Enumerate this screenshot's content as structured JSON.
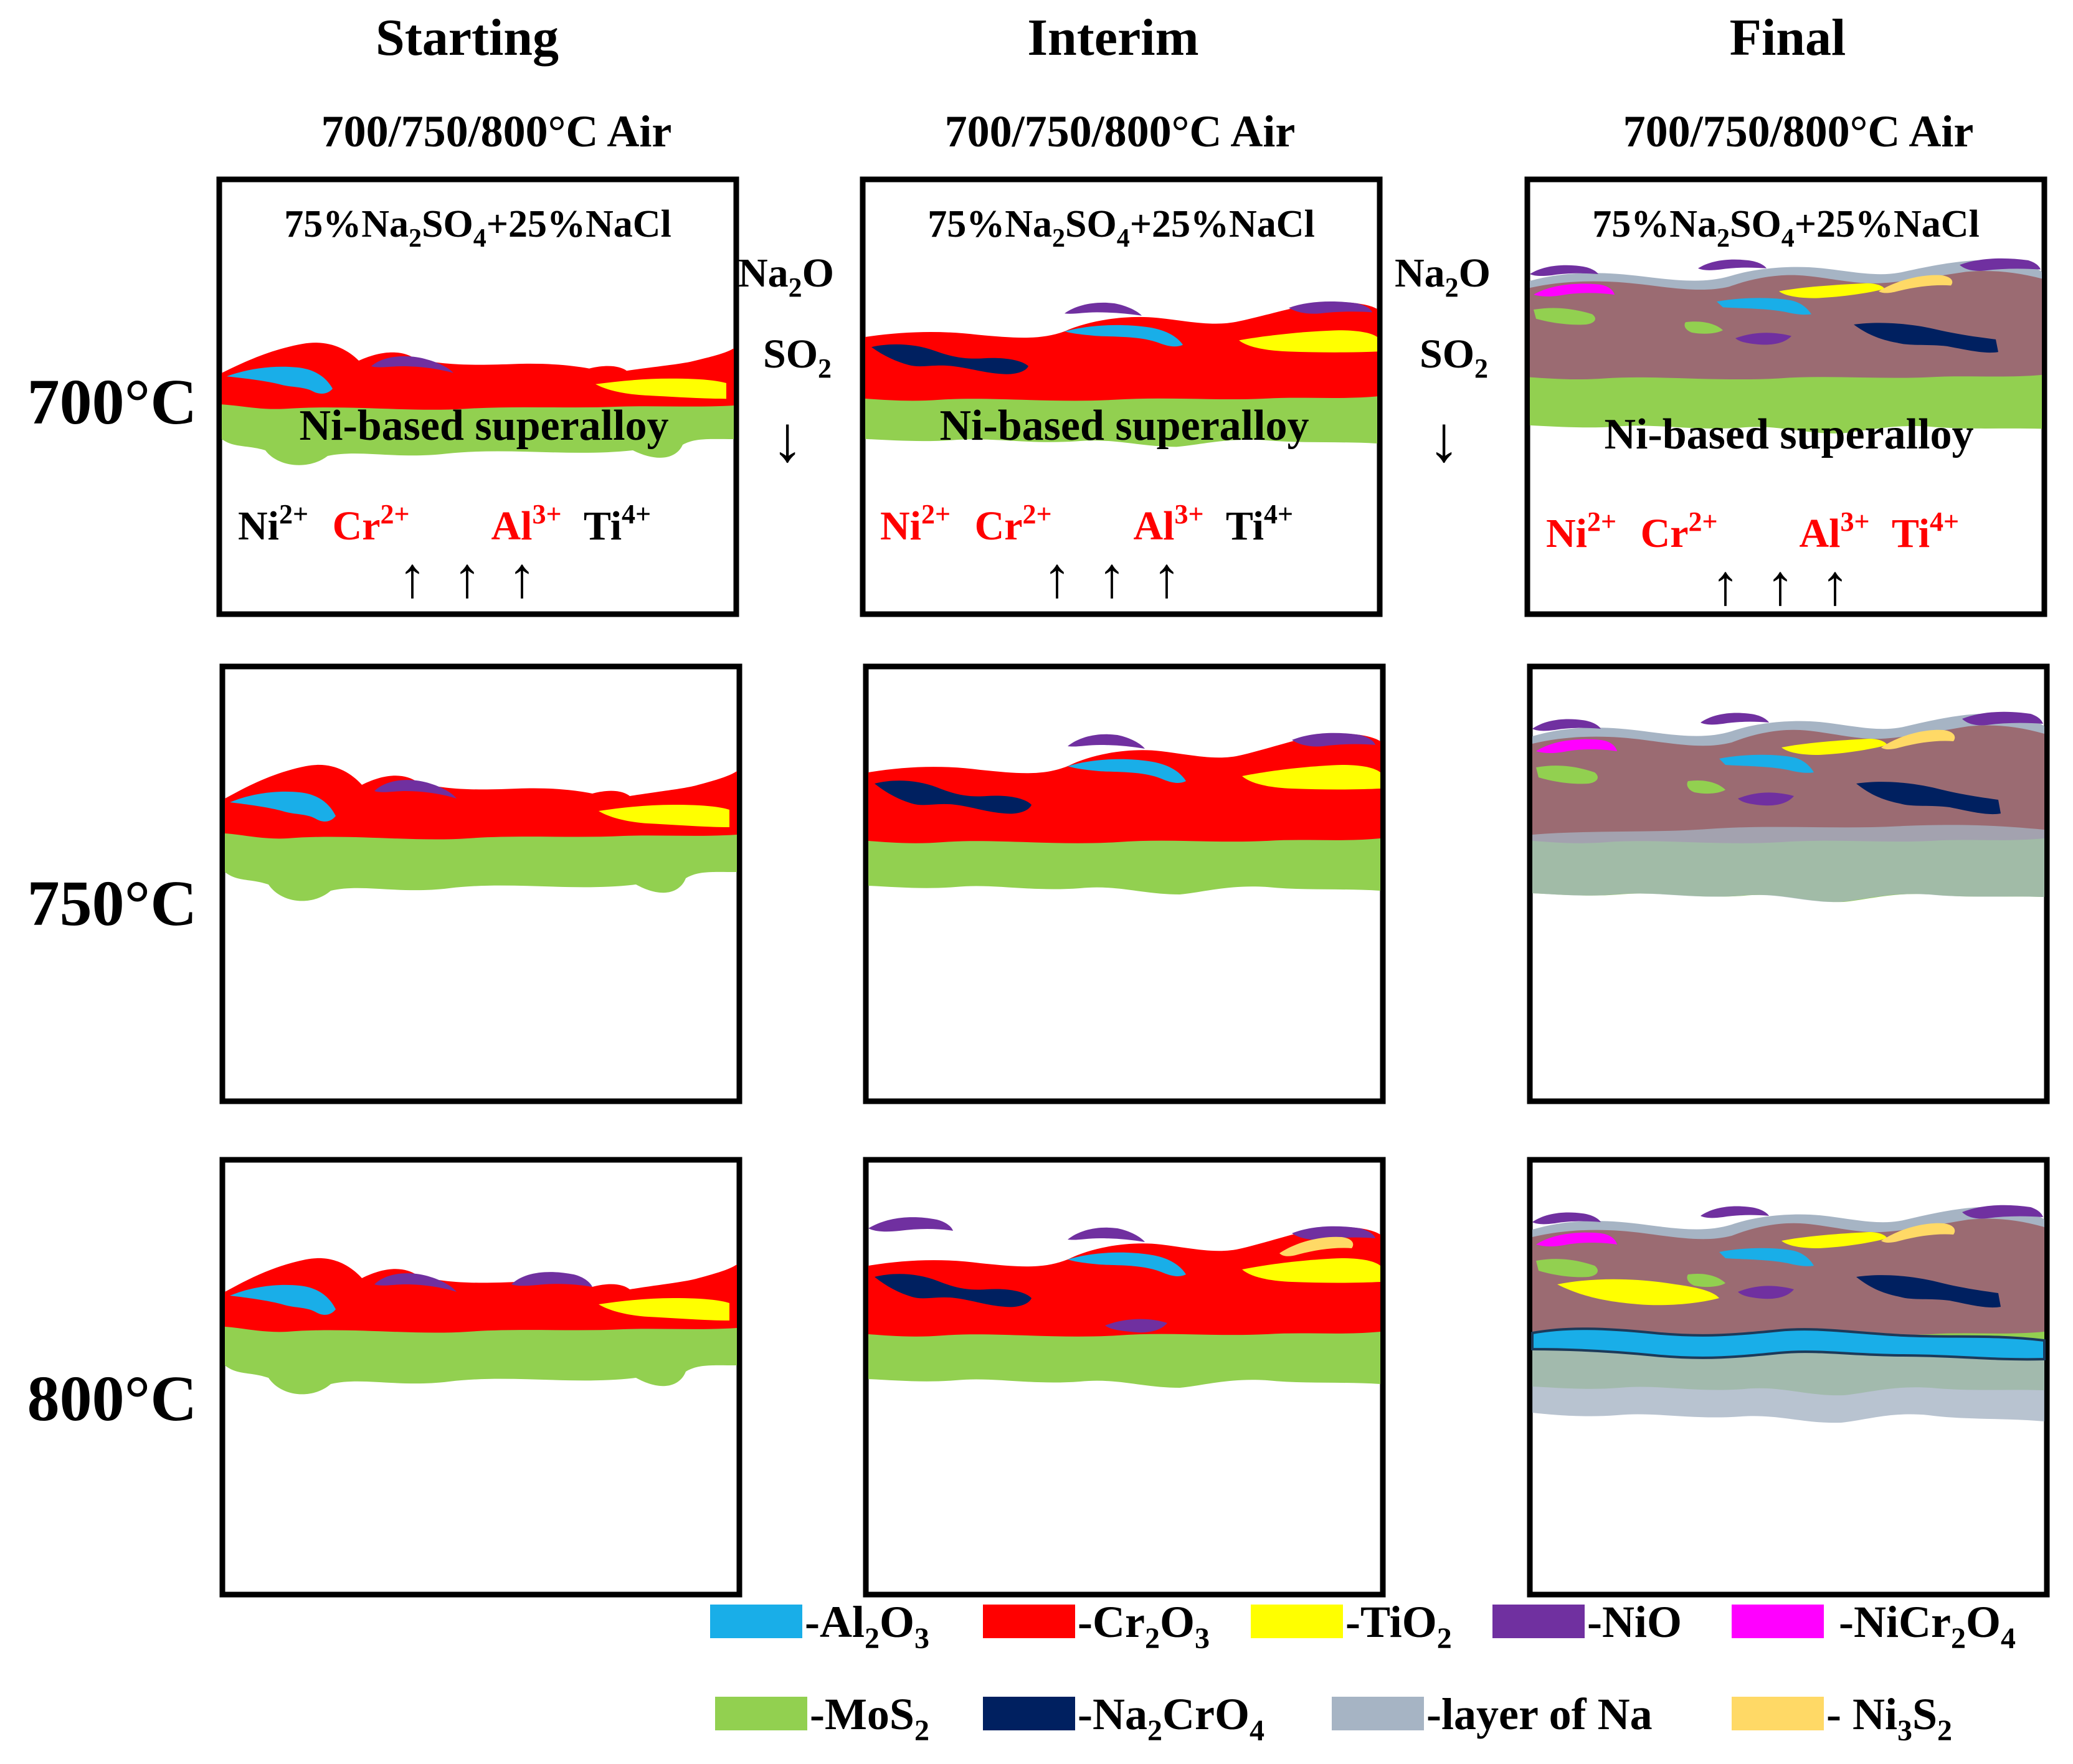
{
  "stages": [
    "Starting",
    "Interim",
    "Final"
  ],
  "condition": "700/750/800°C Air",
  "salt": {
    "pre": "75%Na",
    "s1": "2",
    "mid": "SO",
    "s2": "4",
    "post": "+25%NaCl"
  },
  "substrate": "Ni-based superalloy",
  "gases": {
    "na": "Na",
    "na_sub": "2",
    "o": "O",
    "so": "SO",
    "so_sub": "2",
    "arrow": "↓"
  },
  "temperatures": [
    "700°C",
    "750°C",
    "800°C"
  ],
  "ions": {
    "starting": [
      {
        "el": "Ni",
        "ch": "2+",
        "color": "#000000"
      },
      {
        "el": "Cr",
        "ch": "2+",
        "color": "#ff0000"
      },
      {
        "el": "Al",
        "ch": "3+",
        "color": "#ff0000"
      },
      {
        "el": "Ti",
        "ch": "4+",
        "color": "#000000"
      }
    ],
    "interim": [
      {
        "el": "Ni",
        "ch": "2+",
        "color": "#ff0000"
      },
      {
        "el": "Cr",
        "ch": "2+",
        "color": "#ff0000"
      },
      {
        "el": "Al",
        "ch": "3+",
        "color": "#ff0000"
      },
      {
        "el": "Ti",
        "ch": "4+",
        "color": "#000000"
      }
    ],
    "final": [
      {
        "el": "Ni",
        "ch": "2+",
        "color": "#ff0000"
      },
      {
        "el": "Cr",
        "ch": "2+",
        "color": "#ff0000"
      },
      {
        "el": "Al",
        "ch": "3+",
        "color": "#ff0000"
      },
      {
        "el": "Ti",
        "ch": "4+",
        "color": "#ff0000"
      }
    ],
    "up_arrow": "↑"
  },
  "legend": [
    {
      "pre": "-Al",
      "s1": "2",
      "mid": "O",
      "s2": "3",
      "color": "#19aee8"
    },
    {
      "pre": "-Cr",
      "s1": "2",
      "mid": "O",
      "s2": "3",
      "color": "#ff0000"
    },
    {
      "pre": "-TiO",
      "s1": "2",
      "mid": "",
      "s2": "",
      "color": "#ffff00"
    },
    {
      "pre": "-NiO",
      "s1": "",
      "mid": "",
      "s2": "",
      "color": "#7030a0"
    },
    {
      "pre": "-NiCr",
      "s1": "2",
      "mid": "O",
      "s2": "4",
      "color": "#ff00ff"
    },
    {
      "pre": "-MoS",
      "s1": "2",
      "mid": "",
      "s2": "",
      "color": "#92d050"
    },
    {
      "pre": "-Na",
      "s1": "2",
      "mid": "CrO",
      "s2": "4",
      "color": "#002060"
    },
    {
      "pre": "-layer of Na",
      "s1": "",
      "mid": "",
      "s2": "",
      "color": "#a6b4c4"
    },
    {
      "pre": "- Ni",
      "s1": "3",
      "mid": "S",
      "s2": "2",
      "color": "#ffd966"
    }
  ],
  "colors": {
    "al2o3": "#19aee8",
    "cr2o3": "#ff0000",
    "tio2": "#ffff00",
    "nio": "#7030a0",
    "nicr2o4": "#ff00ff",
    "mos2": "#92d050",
    "na2cro4": "#002060",
    "na_layer": "#a6b4c4",
    "ni3s2": "#ffd966",
    "mixed_scale": "#9b6b72"
  }
}
